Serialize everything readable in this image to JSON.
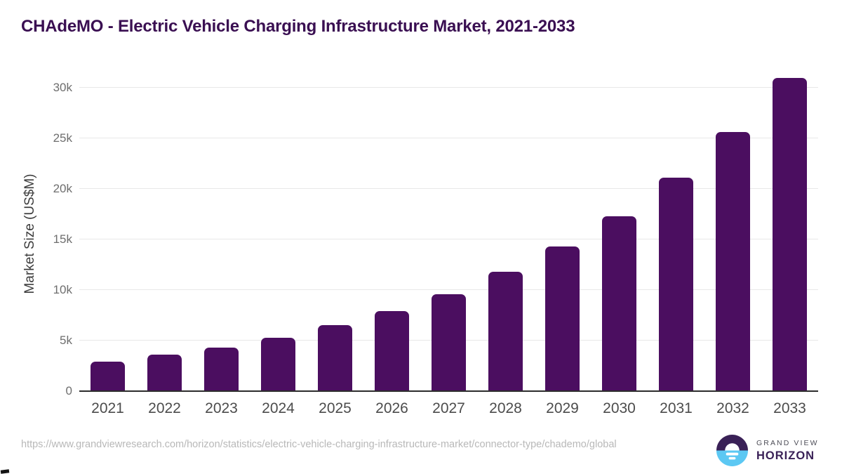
{
  "page": {
    "title": "CHAdeMO - Electric Vehicle Charging Infrastructure Market, 2021-2033"
  },
  "chart_data": {
    "type": "bar",
    "title": "CHAdeMO - Electric Vehicle Charging Infrastructure Market, 2021-2033",
    "categories": [
      "2021",
      "2022",
      "2023",
      "2024",
      "2025",
      "2026",
      "2027",
      "2028",
      "2029",
      "2030",
      "2031",
      "2032",
      "2033"
    ],
    "values": [
      2900,
      3600,
      4300,
      5300,
      6500,
      7900,
      9600,
      11800,
      14300,
      17300,
      21100,
      25600,
      31000
    ],
    "values_unit": "US$M",
    "xlabel": "",
    "ylabel": "Market Size (US$M)",
    "ylim": [
      0,
      30000
    ],
    "yticks": [
      {
        "value": 0,
        "label": "0"
      },
      {
        "value": 5000,
        "label": "5k"
      },
      {
        "value": 10000,
        "label": "10k"
      },
      {
        "value": 15000,
        "label": "15k"
      },
      {
        "value": 20000,
        "label": "20k"
      },
      {
        "value": 25000,
        "label": "25k"
      },
      {
        "value": 30000,
        "label": "30k"
      }
    ],
    "grid": "horizontal",
    "legend": "none",
    "bar_color": "#4b0e60"
  },
  "footer": {
    "source_url": "https://www.grandviewresearch.com/horizon/statistics/electric-vehicle-charging-infrastructure-market/connector-type/chademo/global",
    "brand": {
      "name_top": "GRAND VIEW",
      "name_bottom": "HORIZON"
    }
  },
  "colors": {
    "bar": "#4b0e60",
    "title": "#3a0f52",
    "gridline": "#e8e8e8",
    "axis_line": "#2d2d2d",
    "y_tick": "#6e6e6e",
    "x_label": "#4c4c4c",
    "url_text": "#b8b8b8",
    "logo_purple": "#3a2157",
    "logo_blue": "#5cc8f3"
  }
}
